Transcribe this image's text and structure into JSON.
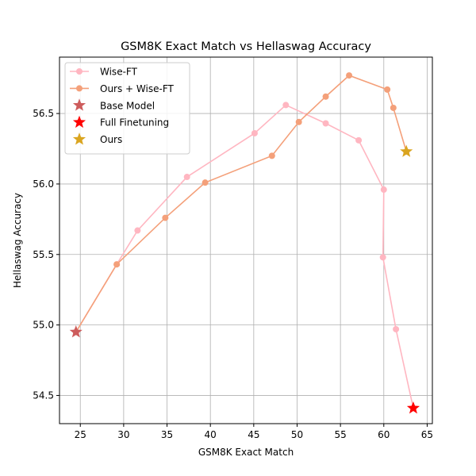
{
  "chart_data": {
    "type": "line",
    "title": "GSM8K Exact Match vs Hellaswag Accuracy",
    "xlabel": "GSM8K Exact Match",
    "ylabel": "Hellaswag Accuracy",
    "xlim": [
      22.6,
      65.6
    ],
    "ylim": [
      54.3,
      56.9
    ],
    "xticks": [
      25,
      30,
      35,
      40,
      45,
      50,
      55,
      60,
      65
    ],
    "yticks": [
      54.5,
      55.0,
      55.5,
      56.0,
      56.5
    ],
    "xtick_labels": [
      "25",
      "30",
      "35",
      "40",
      "45",
      "50",
      "55",
      "60",
      "65"
    ],
    "ytick_labels": [
      "54.5",
      "55.0",
      "55.5",
      "56.0",
      "56.5"
    ],
    "grid": true,
    "legend_position": "upper-left",
    "series": [
      {
        "name": "Wise-FT",
        "kind": "line",
        "color": "#ffb6c1",
        "marker": "circle",
        "points": [
          [
            24.5,
            54.95
          ],
          [
            29.2,
            55.43
          ],
          [
            31.6,
            55.67
          ],
          [
            37.3,
            56.05
          ],
          [
            45.1,
            56.36
          ],
          [
            48.7,
            56.56
          ],
          [
            53.3,
            56.43
          ],
          [
            57.1,
            56.31
          ],
          [
            60.0,
            55.96
          ],
          [
            59.9,
            55.48
          ],
          [
            61.4,
            54.97
          ],
          [
            63.4,
            54.41
          ]
        ]
      },
      {
        "name": "Ours + Wise-FT",
        "kind": "line",
        "color": "#f4a07a",
        "marker": "circle",
        "points": [
          [
            24.5,
            54.95
          ],
          [
            29.2,
            55.43
          ],
          [
            34.8,
            55.76
          ],
          [
            39.4,
            56.01
          ],
          [
            47.1,
            56.2
          ],
          [
            50.2,
            56.44
          ],
          [
            53.3,
            56.62
          ],
          [
            56.0,
            56.77
          ],
          [
            60.4,
            56.67
          ],
          [
            61.1,
            56.54
          ],
          [
            62.6,
            56.23
          ]
        ]
      },
      {
        "name": "Base Model",
        "kind": "star",
        "color": "#cd5c5c",
        "points": [
          [
            24.5,
            54.95
          ]
        ]
      },
      {
        "name": "Full Finetuning",
        "kind": "star",
        "color": "#ff0000",
        "points": [
          [
            63.4,
            54.41
          ]
        ]
      },
      {
        "name": "Ours",
        "kind": "star",
        "color": "#daa520",
        "points": [
          [
            62.6,
            56.23
          ]
        ]
      }
    ]
  }
}
